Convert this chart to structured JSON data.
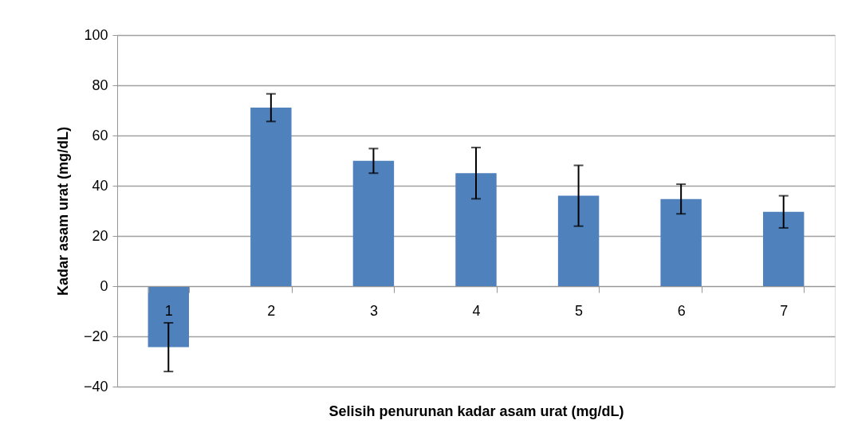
{
  "chart_data": {
    "type": "bar",
    "xlabel": "Selisih penurunan kadar asam urat (mg/dL)",
    "ylabel": "Kadar asam urat (mg/dL)",
    "categories": [
      "1",
      "2",
      "3",
      "4",
      "5",
      "6",
      "7"
    ],
    "values": [
      -24.3,
      71.1,
      49.9,
      45.0,
      36.0,
      34.7,
      29.6
    ],
    "errors": [
      9.7,
      5.5,
      4.9,
      10.2,
      12.1,
      5.9,
      6.4
    ],
    "color": "#4f81bd",
    "ylim": [
      -40,
      100
    ],
    "yticks": [
      -40,
      -20,
      0,
      20,
      40,
      60,
      80,
      100
    ],
    "grid": "y"
  }
}
